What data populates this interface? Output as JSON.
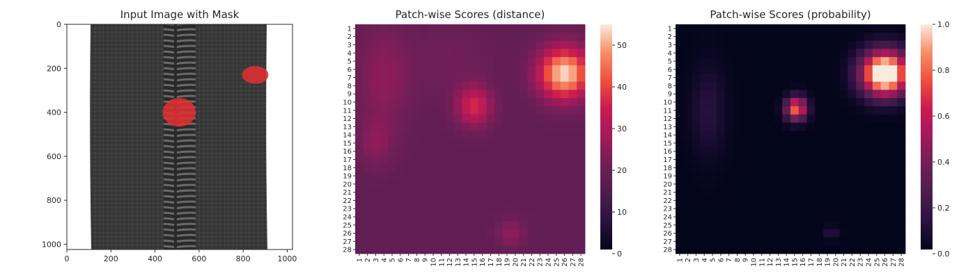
{
  "chart_data": [
    {
      "type": "image",
      "title": "Input Image with Mask",
      "xlabel": "",
      "ylabel": "",
      "xlim": [
        0,
        1024
      ],
      "ylim": [
        1024,
        0
      ],
      "xticks": [
        0,
        200,
        400,
        600,
        800,
        1000
      ],
      "yticks": [
        0,
        200,
        400,
        600,
        800,
        1000
      ],
      "image_description": {
        "subject": "zipper",
        "mask_color": "#e03030",
        "mask_regions": [
          {
            "cx": 510,
            "cy": 400,
            "rx": 75,
            "ry": 65
          },
          {
            "cx": 855,
            "cy": 230,
            "rx": 60,
            "ry": 40
          }
        ]
      }
    },
    {
      "type": "heatmap",
      "title": "Patch-wise Scores (distance)",
      "xticklabels": [
        "1",
        "2",
        "3",
        "4",
        "5",
        "6",
        "7",
        "8",
        "9",
        "10",
        "11",
        "12",
        "13",
        "14",
        "15",
        "16",
        "17",
        "18",
        "19",
        "20",
        "21",
        "22",
        "23",
        "24",
        "25",
        "26",
        "27",
        "28"
      ],
      "yticklabels": [
        "1",
        "2",
        "3",
        "4",
        "5",
        "6",
        "7",
        "8",
        "9",
        "10",
        "11",
        "12",
        "13",
        "14",
        "15",
        "16",
        "17",
        "18",
        "19",
        "20",
        "21",
        "22",
        "23",
        "24",
        "25",
        "26",
        "27",
        "28"
      ],
      "colorbar": {
        "min": 0,
        "max": 55,
        "ticks": [
          0,
          10,
          20,
          30,
          40,
          50
        ],
        "colormap": "rocket"
      },
      "base_value": 18,
      "hotspots": [
        {
          "col": 26,
          "row": 6.5,
          "sigma_col": 2.2,
          "sigma_row": 2.2,
          "amp": 36
        },
        {
          "col": 15,
          "row": 10.5,
          "sigma_col": 1.5,
          "sigma_row": 1.7,
          "amp": 18
        },
        {
          "col": 4,
          "row": 7,
          "sigma_col": 2.2,
          "sigma_row": 4.5,
          "amp": 7
        },
        {
          "col": 3,
          "row": 15,
          "sigma_col": 1.5,
          "sigma_row": 2,
          "amp": 6
        },
        {
          "col": 19.5,
          "row": 26,
          "sigma_col": 1.3,
          "sigma_row": 1.2,
          "amp": 7
        },
        {
          "col": 12,
          "row": 5,
          "sigma_col": 3.5,
          "sigma_row": 3,
          "amp": 3
        }
      ]
    },
    {
      "type": "heatmap",
      "title": "Patch-wise Scores (probability)",
      "xticklabels": [
        "1",
        "2",
        "3",
        "4",
        "5",
        "6",
        "7",
        "8",
        "9",
        "10",
        "11",
        "12",
        "13",
        "14",
        "15",
        "16",
        "17",
        "18",
        "19",
        "20",
        "21",
        "22",
        "23",
        "24",
        "25",
        "26",
        "27",
        "28"
      ],
      "yticklabels": [
        "1",
        "2",
        "3",
        "4",
        "5",
        "6",
        "7",
        "8",
        "9",
        "10",
        "11",
        "12",
        "13",
        "14",
        "15",
        "16",
        "17",
        "18",
        "19",
        "20",
        "21",
        "22",
        "23",
        "24",
        "25",
        "26",
        "27",
        "28"
      ],
      "colorbar": {
        "min": 0.0,
        "max": 1.0,
        "ticks": [
          0.0,
          0.2,
          0.4,
          0.6,
          0.8,
          1.0
        ],
        "tick_labels": [
          "0.0",
          "0.2",
          "0.4",
          "0.6",
          "0.8",
          "1.0"
        ],
        "colormap": "rocket"
      },
      "base_value": 0.0,
      "hotspots": [
        {
          "col": 26,
          "row": 6.5,
          "sigma_col": 2.0,
          "sigma_row": 1.9,
          "amp": 1.25
        },
        {
          "col": 15.2,
          "row": 10.8,
          "sigma_col": 0.9,
          "sigma_row": 1.0,
          "amp": 0.8
        },
        {
          "col": 4.5,
          "row": 11,
          "sigma_col": 1.5,
          "sigma_row": 4,
          "amp": 0.12
        },
        {
          "col": 19.5,
          "row": 26,
          "sigma_col": 0.6,
          "sigma_row": 0.6,
          "amp": 0.12
        }
      ]
    }
  ]
}
